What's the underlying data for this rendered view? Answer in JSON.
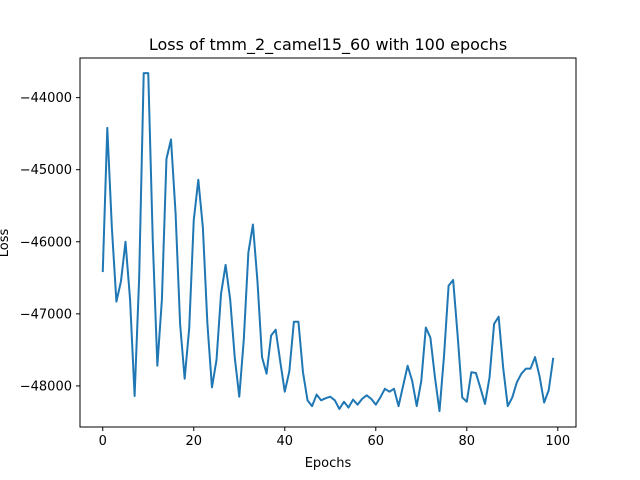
{
  "chart_data": {
    "type": "line",
    "title": "Loss of tmm_2_camel15_60 with 100 epochs",
    "xlabel": "Epochs",
    "ylabel": "Loss",
    "xlim": [
      -5,
      104
    ],
    "ylim": [
      -48570,
      -43450
    ],
    "xticks": [
      0,
      20,
      40,
      60,
      80,
      100
    ],
    "yticks": [
      -48000,
      -47000,
      -46000,
      -45000,
      -44000
    ],
    "xtick_labels": [
      "0",
      "20",
      "40",
      "60",
      "80",
      "100"
    ],
    "ytick_labels": [
      "−48000",
      "−47000",
      "−46000",
      "−45000",
      "−44000"
    ],
    "grid": false,
    "legend": "none",
    "line_color": "#1f77b4",
    "series": [
      {
        "x": [
          0,
          1,
          2,
          3,
          4,
          5,
          6,
          7,
          8,
          9,
          10,
          11,
          12,
          13,
          14,
          15,
          16,
          17,
          18,
          19,
          20,
          21,
          22,
          23,
          24,
          25,
          26,
          27,
          28,
          29,
          30,
          31,
          32,
          33,
          34,
          35,
          36,
          37,
          38,
          39,
          40,
          41,
          42,
          43,
          44,
          45,
          46,
          47,
          48,
          49,
          50,
          51,
          52,
          53,
          54,
          55,
          56,
          57,
          58,
          59,
          60,
          61,
          62,
          63,
          64,
          65,
          66,
          67,
          68,
          69,
          70,
          71,
          72,
          73,
          74,
          75,
          76,
          77,
          78,
          79,
          80,
          81,
          82,
          83,
          84,
          85,
          86,
          87,
          88,
          89,
          90,
          91,
          92,
          93,
          94,
          95,
          96,
          97,
          98,
          99
        ],
        "values": [
          -46420,
          -44420,
          -45800,
          -46830,
          -46550,
          -46000,
          -46800,
          -48140,
          -46500,
          -43660,
          -43660,
          -46000,
          -47720,
          -46800,
          -44850,
          -44580,
          -45600,
          -47140,
          -47900,
          -47200,
          -45700,
          -45140,
          -45800,
          -47140,
          -48020,
          -47640,
          -46720,
          -46320,
          -46800,
          -47600,
          -48150,
          -47350,
          -46150,
          -45760,
          -46550,
          -47600,
          -47830,
          -47300,
          -47220,
          -47660,
          -48080,
          -47800,
          -47110,
          -47110,
          -47810,
          -48200,
          -48280,
          -48120,
          -48200,
          -48170,
          -48150,
          -48200,
          -48320,
          -48220,
          -48300,
          -48190,
          -48260,
          -48180,
          -48130,
          -48180,
          -48260,
          -48160,
          -48040,
          -48080,
          -48040,
          -48280,
          -48000,
          -47720,
          -47930,
          -48280,
          -47930,
          -47190,
          -47330,
          -47880,
          -48350,
          -47580,
          -46610,
          -46530,
          -47310,
          -48160,
          -48220,
          -47810,
          -47820,
          -48030,
          -48250,
          -47880,
          -47140,
          -47040,
          -47750,
          -48280,
          -48160,
          -47950,
          -47830,
          -47760,
          -47760,
          -47600,
          -47870,
          -48230,
          -48060,
          -47610
        ]
      }
    ]
  }
}
